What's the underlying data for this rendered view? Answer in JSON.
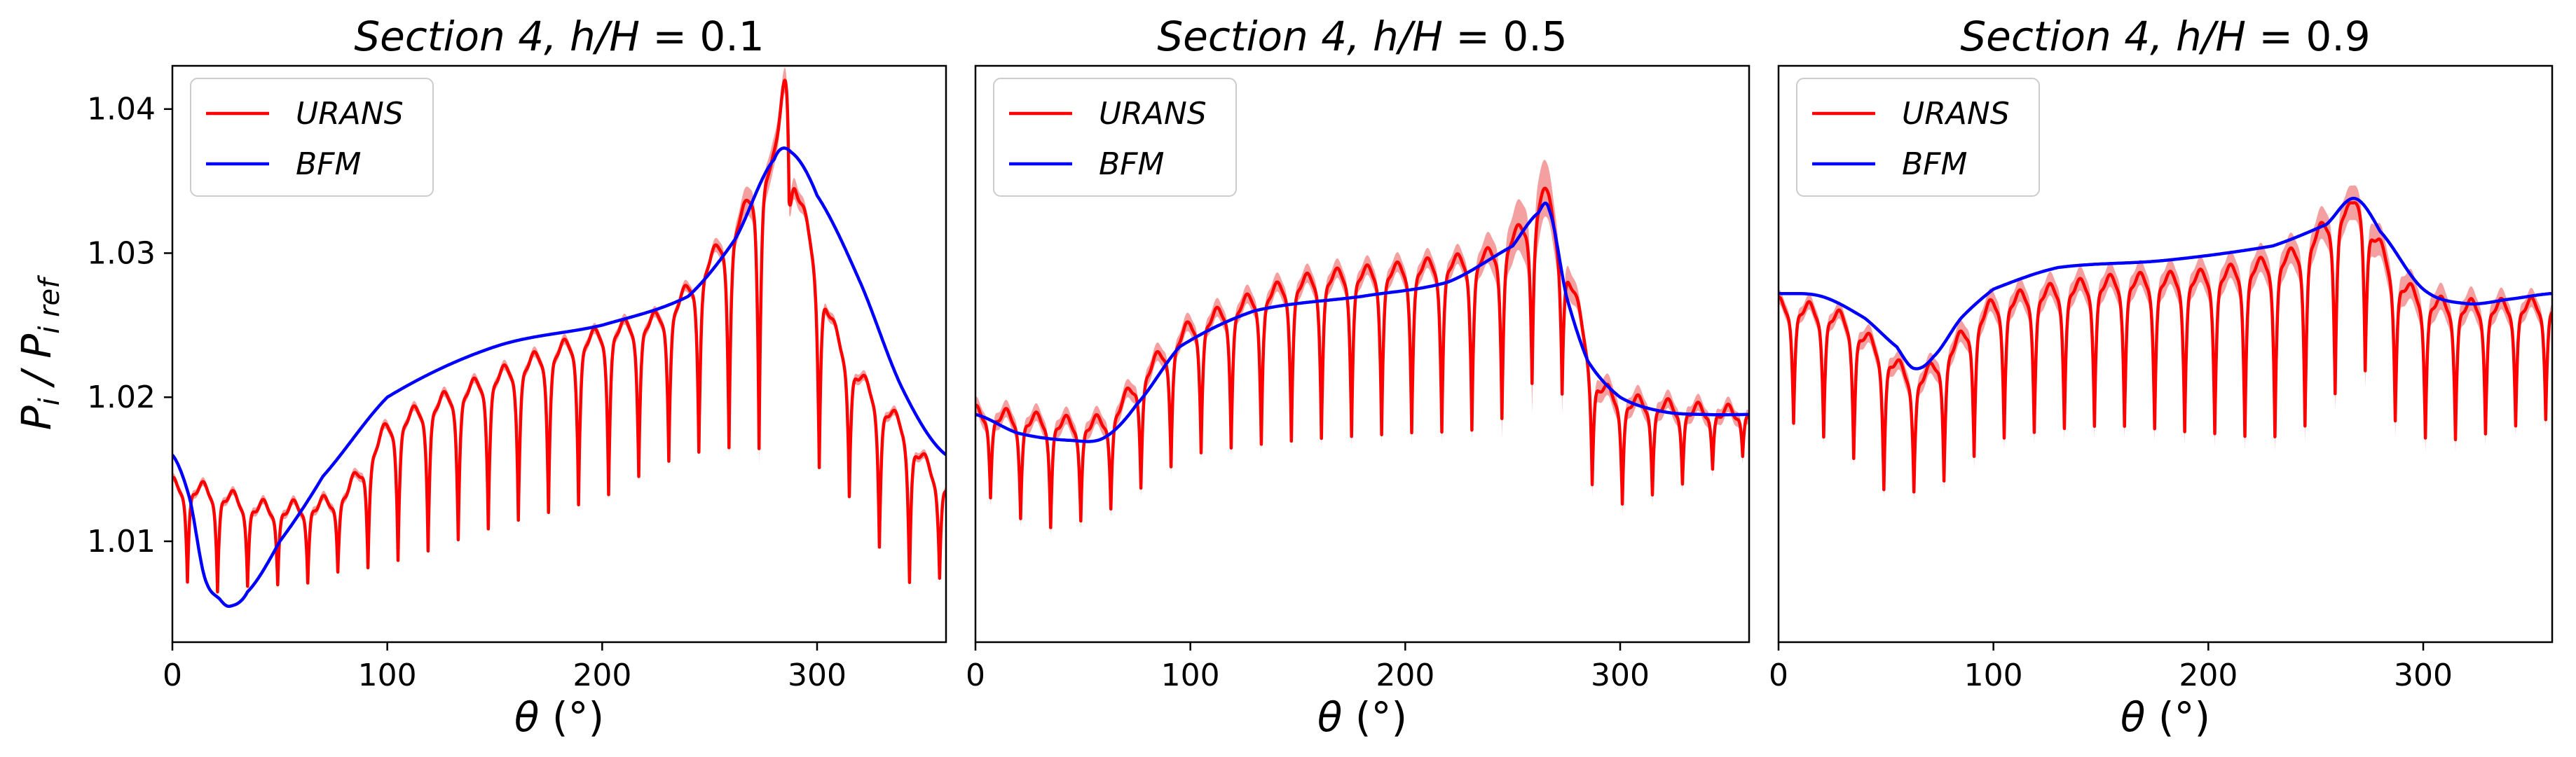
{
  "figure": {
    "ylabel": "P_i / P_i ref",
    "ylabel_parts": {
      "main": "P",
      "sub1": "i",
      "sep": " / ",
      "main2": "P",
      "sub2": "i ref"
    }
  },
  "chart_data": [
    {
      "type": "line",
      "title": "Section 4,  h/H = 0.1",
      "title_parts": {
        "prefix": "Section 4,",
        "ratio": "h/H",
        "eq": "=",
        "value": "0.1"
      },
      "xlabel": "θ (°)",
      "xlabel_parts": {
        "symbol": "θ",
        "unit": "(°)"
      },
      "ylabel": "P_i / P_i ref",
      "xlim": [
        0,
        360
      ],
      "ylim": [
        1.003,
        1.043
      ],
      "xticks": [
        0,
        100,
        200,
        300
      ],
      "yticks": [
        1.01,
        1.02,
        1.03,
        1.04
      ],
      "ytick_labels": [
        "1.01",
        "1.02",
        "1.03",
        "1.04"
      ],
      "legend": {
        "position": "top-left",
        "entries": [
          "URANS",
          "BFM"
        ]
      },
      "series": [
        {
          "name": "URANS",
          "color": "#ff0000",
          "band_color": "#f08080",
          "trend_x": [
            0,
            20,
            40,
            60,
            80,
            100,
            150,
            200,
            230,
            260,
            285,
            310,
            340,
            360
          ],
          "trend_y": [
            1.014,
            1.0135,
            1.0125,
            1.0125,
            1.0135,
            1.018,
            1.0215,
            1.0245,
            1.026,
            1.0315,
            1.036,
            1.024,
            1.018,
            1.014
          ],
          "dip_y": [
            1.0075,
            1.0065,
            1.007,
            1.007,
            1.008,
            1.0085,
            1.011,
            1.013,
            1.0155,
            1.0165,
            1.016,
            1.014,
            1.0075,
            1.0075
          ],
          "dip_period_deg": 14,
          "peak_x": 285,
          "peak_y": 1.042,
          "band_width": [
            [
              0,
              0.0003
            ],
            [
              250,
              0.0004
            ],
            [
              275,
              0.0012
            ],
            [
              300,
              0.0004
            ],
            [
              360,
              0.0003
            ]
          ]
        },
        {
          "name": "BFM",
          "color": "#0000ff",
          "x": [
            0,
            8,
            15,
            22,
            27,
            35,
            50,
            70,
            100,
            150,
            200,
            240,
            262,
            280,
            288,
            300,
            320,
            340,
            360
          ],
          "y": [
            1.016,
            1.013,
            1.0075,
            1.006,
            1.0055,
            1.0065,
            1.01,
            1.0145,
            1.02,
            1.0235,
            1.025,
            1.027,
            1.031,
            1.0365,
            1.037,
            1.034,
            1.028,
            1.0205,
            1.016
          ]
        }
      ]
    },
    {
      "type": "line",
      "title": "Section 4,  h/H = 0.5",
      "title_parts": {
        "prefix": "Section 4,",
        "ratio": "h/H",
        "eq": "=",
        "value": "0.5"
      },
      "xlabel": "θ (°)",
      "xlabel_parts": {
        "symbol": "θ",
        "unit": "(°)"
      },
      "xlim": [
        0,
        360
      ],
      "ylim": [
        1.003,
        1.043
      ],
      "xticks": [
        0,
        100,
        200,
        300
      ],
      "yticks": [],
      "legend": {
        "position": "top-left",
        "entries": [
          "URANS",
          "BFM"
        ]
      },
      "series": [
        {
          "name": "URANS",
          "color": "#ff0000",
          "band_color": "#f08080",
          "trend_x": [
            0,
            30,
            60,
            80,
            100,
            150,
            200,
            240,
            265,
            275,
            290,
            320,
            360
          ],
          "trend_y": [
            1.019,
            1.0185,
            1.0185,
            1.022,
            1.025,
            1.028,
            1.029,
            1.03,
            1.0325,
            1.029,
            1.021,
            1.0195,
            1.019
          ],
          "dip_y": [
            1.0135,
            1.011,
            1.012,
            1.014,
            1.016,
            1.017,
            1.0175,
            1.018,
            1.021,
            1.0195,
            1.013,
            1.0135,
            1.016
          ],
          "dip_period_deg": 14,
          "peak_x": 265,
          "peak_y": 1.0345,
          "band_width": [
            [
              0,
              0.0006
            ],
            [
              230,
              0.0007
            ],
            [
              262,
              0.0022
            ],
            [
              280,
              0.0008
            ],
            [
              360,
              0.0005
            ]
          ]
        },
        {
          "name": "BFM",
          "color": "#0000ff",
          "x": [
            0,
            20,
            45,
            60,
            75,
            95,
            130,
            180,
            220,
            250,
            262,
            267,
            275,
            285,
            300,
            320,
            340,
            360
          ],
          "y": [
            1.0188,
            1.0175,
            1.017,
            1.0172,
            1.0195,
            1.0235,
            1.026,
            1.027,
            1.028,
            1.0305,
            1.0328,
            1.033,
            1.027,
            1.0225,
            1.02,
            1.019,
            1.0188,
            1.0188
          ]
        }
      ]
    },
    {
      "type": "line",
      "title": "Section 4,  h/H = 0.9",
      "title_parts": {
        "prefix": "Section 4,",
        "ratio": "h/H",
        "eq": "=",
        "value": "0.9"
      },
      "xlabel": "θ (°)",
      "xlabel_parts": {
        "symbol": "θ",
        "unit": "(°)"
      },
      "xlim": [
        0,
        360
      ],
      "ylim": [
        1.003,
        1.043
      ],
      "xticks": [
        0,
        100,
        200,
        300
      ],
      "yticks": [],
      "legend": {
        "position": "top-left",
        "entries": [
          "URANS",
          "BFM"
        ]
      },
      "series": [
        {
          "name": "URANS",
          "color": "#ff0000",
          "band_color": "#f08080",
          "trend_x": [
            0,
            30,
            50,
            65,
            80,
            100,
            150,
            200,
            240,
            268,
            290,
            310,
            360
          ],
          "trend_y": [
            1.0265,
            1.0255,
            1.023,
            1.0215,
            1.0235,
            1.0265,
            1.028,
            1.0285,
            1.03,
            1.033,
            1.028,
            1.0265,
            1.0265
          ],
          "dip_y": [
            1.0185,
            1.0165,
            1.0135,
            1.0135,
            1.0145,
            1.017,
            1.018,
            1.0175,
            1.0175,
            1.021,
            1.018,
            1.017,
            1.0185
          ],
          "dip_period_deg": 14,
          "peak_x": 268,
          "peak_y": 1.0335,
          "band_width": [
            [
              0,
              0.0005
            ],
            [
              100,
              0.0008
            ],
            [
              200,
              0.0009
            ],
            [
              268,
              0.0012
            ],
            [
              360,
              0.0006
            ]
          ]
        },
        {
          "name": "BFM",
          "color": "#0000ff",
          "x": [
            0,
            20,
            40,
            55,
            63,
            72,
            85,
            100,
            130,
            180,
            230,
            255,
            268,
            280,
            300,
            320,
            340,
            360
          ],
          "y": [
            1.0272,
            1.027,
            1.0255,
            1.0235,
            1.022,
            1.0228,
            1.0255,
            1.0275,
            1.029,
            1.0295,
            1.0305,
            1.032,
            1.0338,
            1.0315,
            1.0275,
            1.0265,
            1.0268,
            1.0272
          ]
        }
      ]
    }
  ]
}
